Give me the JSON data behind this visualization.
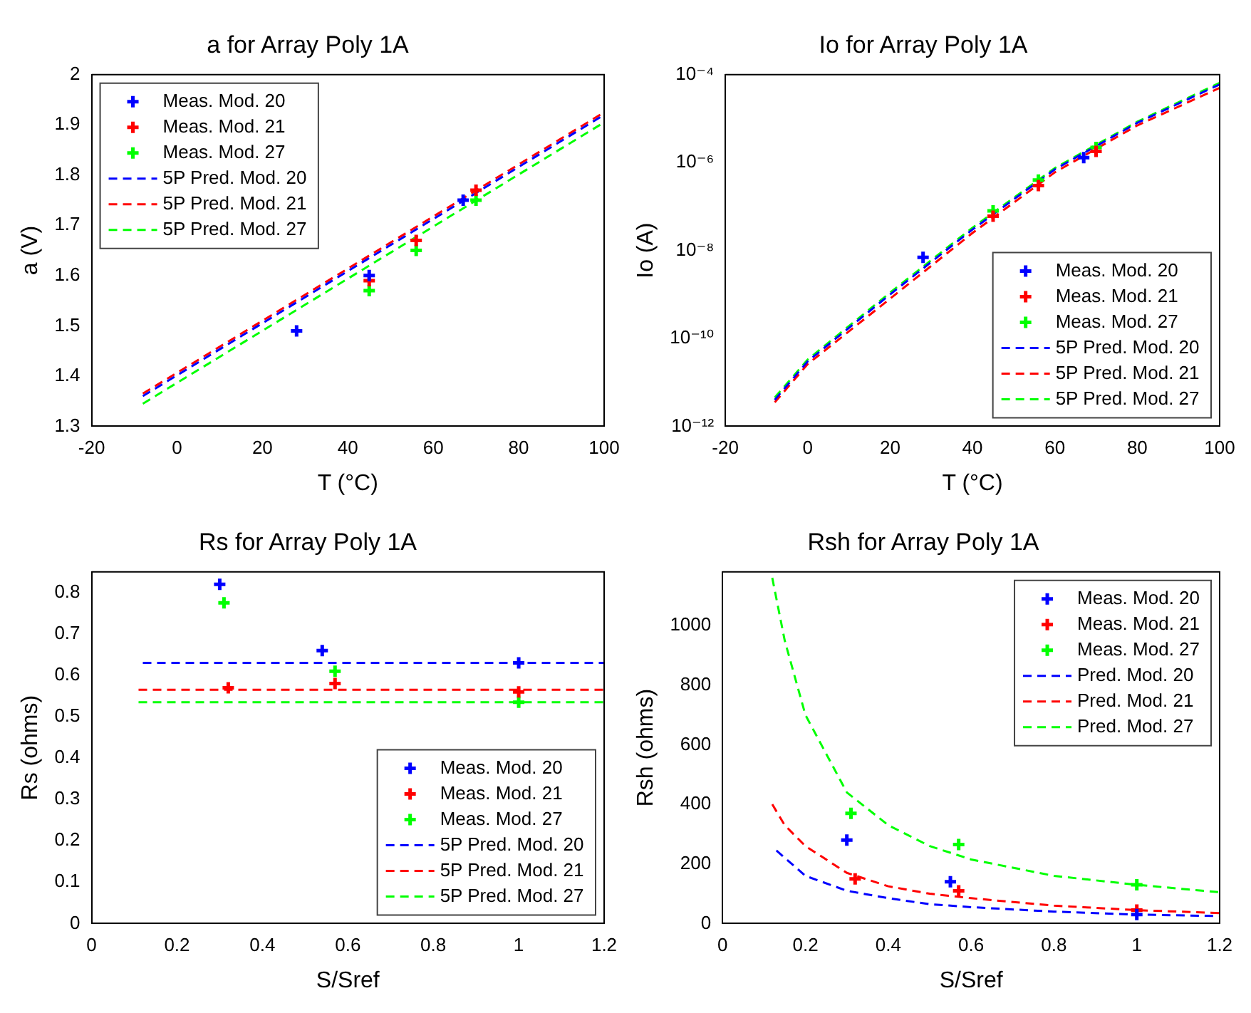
{
  "chart_data": [
    {
      "type": "scatter",
      "title": "a for Array Poly 1A",
      "xlabel": "T (°C)",
      "ylabel": "a (V)",
      "xlim": [
        -20,
        100
      ],
      "xticks": [
        -20,
        0,
        20,
        40,
        60,
        80,
        100
      ],
      "ylim": [
        1.3,
        2
      ],
      "yticks": [
        1.3,
        1.4,
        1.5,
        1.6,
        1.7,
        1.8,
        1.9,
        2
      ],
      "grid": false,
      "legend": "top left",
      "series": [
        {
          "name": "Meas. Mod. 20",
          "type": "scatter",
          "marker": "cross",
          "color": "#0000ff",
          "x": [
            28,
            45,
            67
          ],
          "values": [
            1.49,
            1.6,
            1.75
          ]
        },
        {
          "name": "Meas. Mod. 21",
          "type": "scatter",
          "marker": "cross",
          "color": "#ff0000",
          "x": [
            45,
            56,
            70
          ],
          "values": [
            1.59,
            1.67,
            1.77
          ]
        },
        {
          "name": "Meas. Mod. 27",
          "type": "scatter",
          "marker": "cross",
          "color": "#00ff00",
          "x": [
            45,
            56,
            70
          ],
          "values": [
            1.57,
            1.65,
            1.75
          ]
        },
        {
          "name": "5P Pred. Mod. 20",
          "type": "line",
          "line_style": "dashed",
          "color": "#0000ff",
          "x": [
            -8,
            100
          ],
          "values": [
            1.36,
            1.92
          ]
        },
        {
          "name": "5P Pred. Mod. 21",
          "type": "line",
          "line_style": "dashed",
          "color": "#ff0000",
          "x": [
            -8,
            100
          ],
          "values": [
            1.365,
            1.925
          ]
        },
        {
          "name": "5P Pred. Mod. 27",
          "type": "line",
          "line_style": "dashed",
          "color": "#00ff00",
          "x": [
            -8,
            100
          ],
          "values": [
            1.345,
            1.905
          ]
        }
      ]
    },
    {
      "type": "scatter",
      "title": "Io for Array Poly 1A",
      "xlabel": "T (°C)",
      "ylabel": "Io (A)",
      "log": "y",
      "xlim": [
        -20,
        100
      ],
      "xticks": [
        -20,
        0,
        20,
        40,
        60,
        80,
        100
      ],
      "ylim": [
        1e-12,
        0.0001
      ],
      "yticks": [
        {
          "value": 1e-12,
          "label": "10⁻¹²"
        },
        {
          "value": 1e-10,
          "label": "10⁻¹⁰"
        },
        {
          "value": 1e-08,
          "label": "10⁻⁸"
        },
        {
          "value": 1e-06,
          "label": "10⁻⁶"
        },
        {
          "value": 0.0001,
          "label": "10⁻⁴"
        }
      ],
      "grid": false,
      "legend": "bottom right",
      "series": [
        {
          "name": "Meas. Mod. 20",
          "type": "scatter",
          "marker": "cross",
          "color": "#0000ff",
          "x": [
            28,
            67
          ],
          "values": [
            7e-09,
            1.3e-06
          ]
        },
        {
          "name": "Meas. Mod. 21",
          "type": "scatter",
          "marker": "cross",
          "color": "#ff0000",
          "x": [
            45,
            56,
            70
          ],
          "values": [
            6e-08,
            3e-07,
            1.8e-06
          ]
        },
        {
          "name": "Meas. Mod. 27",
          "type": "scatter",
          "marker": "cross",
          "color": "#00ff00",
          "x": [
            45,
            56,
            70
          ],
          "values": [
            8e-08,
            4e-07,
            2.2e-06
          ]
        },
        {
          "name": "5P Pred. Mod. 20",
          "type": "line",
          "line_style": "dashed",
          "color": "#0000ff",
          "x": [
            -8,
            0,
            20,
            40,
            60,
            80,
            100
          ],
          "values": [
            4e-12,
            3e-11,
            1e-09,
            3e-08,
            7e-07,
            8e-06,
            6e-05
          ]
        },
        {
          "name": "5P Pred. Mod. 21",
          "type": "line",
          "line_style": "dashed",
          "color": "#ff0000",
          "x": [
            -8,
            0,
            20,
            40,
            60,
            80,
            100
          ],
          "values": [
            3.5e-12,
            2.6e-11,
            8e-10,
            2.5e-08,
            6e-07,
            7e-06,
            5e-05
          ]
        },
        {
          "name": "5P Pred. Mod. 27",
          "type": "line",
          "line_style": "dashed",
          "color": "#00ff00",
          "x": [
            -8,
            0,
            20,
            40,
            60,
            80,
            100
          ],
          "values": [
            4.5e-12,
            3.3e-11,
            1.1e-09,
            3.3e-08,
            7.5e-07,
            8.5e-06,
            6.5e-05
          ]
        }
      ]
    },
    {
      "type": "scatter",
      "title": "Rs for Array Poly 1A",
      "xlabel": "S/Sref",
      "ylabel": "Rs (ohms)",
      "xlim": [
        0,
        1.2
      ],
      "xticks": [
        0,
        0.2,
        0.4,
        0.6,
        0.8,
        1,
        1.2
      ],
      "ylim": [
        0,
        0.85
      ],
      "yticks": [
        0,
        0.1,
        0.2,
        0.3,
        0.4,
        0.5,
        0.6,
        0.7,
        0.8
      ],
      "grid": false,
      "legend": "bottom right",
      "series": [
        {
          "name": "Meas. Mod. 20",
          "type": "scatter",
          "marker": "cross",
          "color": "#0000ff",
          "x": [
            0.3,
            0.54,
            1
          ],
          "values": [
            0.82,
            0.66,
            0.63
          ]
        },
        {
          "name": "Meas. Mod. 21",
          "type": "scatter",
          "marker": "cross",
          "color": "#ff0000",
          "x": [
            0.32,
            0.57,
            1
          ],
          "values": [
            0.57,
            0.58,
            0.56
          ]
        },
        {
          "name": "Meas. Mod. 27",
          "type": "scatter",
          "marker": "cross",
          "color": "#00ff00",
          "x": [
            0.31,
            0.57,
            1
          ],
          "values": [
            0.775,
            0.61,
            0.535
          ]
        },
        {
          "name": "5P Pred. Mod. 20",
          "type": "line",
          "line_style": "dashed",
          "color": "#0000ff",
          "x": [
            0.12,
            1.2
          ],
          "values": [
            0.63,
            0.63
          ]
        },
        {
          "name": "5P Pred. Mod. 21",
          "type": "line",
          "line_style": "dashed",
          "color": "#ff0000",
          "x": [
            0.11,
            1.2
          ],
          "values": [
            0.565,
            0.565
          ]
        },
        {
          "name": "5P Pred. Mod. 27",
          "type": "line",
          "line_style": "dashed",
          "color": "#00ff00",
          "x": [
            0.11,
            1.2
          ],
          "values": [
            0.535,
            0.535
          ]
        }
      ]
    },
    {
      "type": "scatter",
      "title": "Rsh for Array Poly 1A",
      "xlabel": "S/Sref",
      "ylabel": "Rsh (ohms)",
      "xlim": [
        0,
        1.2
      ],
      "xticks": [
        0,
        0.2,
        0.4,
        0.6,
        0.8,
        1,
        1.2
      ],
      "ylim": [
        0,
        1180
      ],
      "yticks": [
        0,
        200,
        400,
        600,
        800,
        1000
      ],
      "grid": false,
      "legend": "top right",
      "series": [
        {
          "name": "Meas. Mod. 20",
          "type": "scatter",
          "marker": "cross",
          "color": "#0000ff",
          "x": [
            0.3,
            0.55,
            1
          ],
          "values": [
            280,
            140,
            30
          ]
        },
        {
          "name": "Meas. Mod. 21",
          "type": "scatter",
          "marker": "cross",
          "color": "#ff0000",
          "x": [
            0.32,
            0.57,
            1
          ],
          "values": [
            150,
            110,
            45
          ]
        },
        {
          "name": "Meas. Mod. 27",
          "type": "scatter",
          "marker": "cross",
          "color": "#00ff00",
          "x": [
            0.31,
            0.57,
            1
          ],
          "values": [
            370,
            265,
            130
          ]
        },
        {
          "name": "Pred. Mod. 20",
          "type": "line",
          "line_style": "dashed",
          "color": "#0000ff",
          "x": [
            0.13,
            0.2,
            0.3,
            0.4,
            0.5,
            0.6,
            0.8,
            1,
            1.2
          ],
          "values": [
            245,
            160,
            110,
            85,
            65,
            55,
            40,
            30,
            25
          ]
        },
        {
          "name": "Pred. Mod. 21",
          "type": "line",
          "line_style": "dashed",
          "color": "#ff0000",
          "x": [
            0.12,
            0.15,
            0.2,
            0.3,
            0.4,
            0.5,
            0.6,
            0.8,
            1,
            1.2
          ],
          "values": [
            400,
            330,
            260,
            170,
            125,
            100,
            85,
            60,
            45,
            35
          ]
        },
        {
          "name": "Pred. Mod. 27",
          "type": "line",
          "line_style": "dashed",
          "color": "#00ff00",
          "x": [
            0.12,
            0.15,
            0.2,
            0.3,
            0.4,
            0.5,
            0.6,
            0.8,
            1,
            1.2
          ],
          "values": [
            1160,
            950,
            700,
            440,
            330,
            260,
            215,
            160,
            130,
            105
          ]
        }
      ]
    }
  ]
}
